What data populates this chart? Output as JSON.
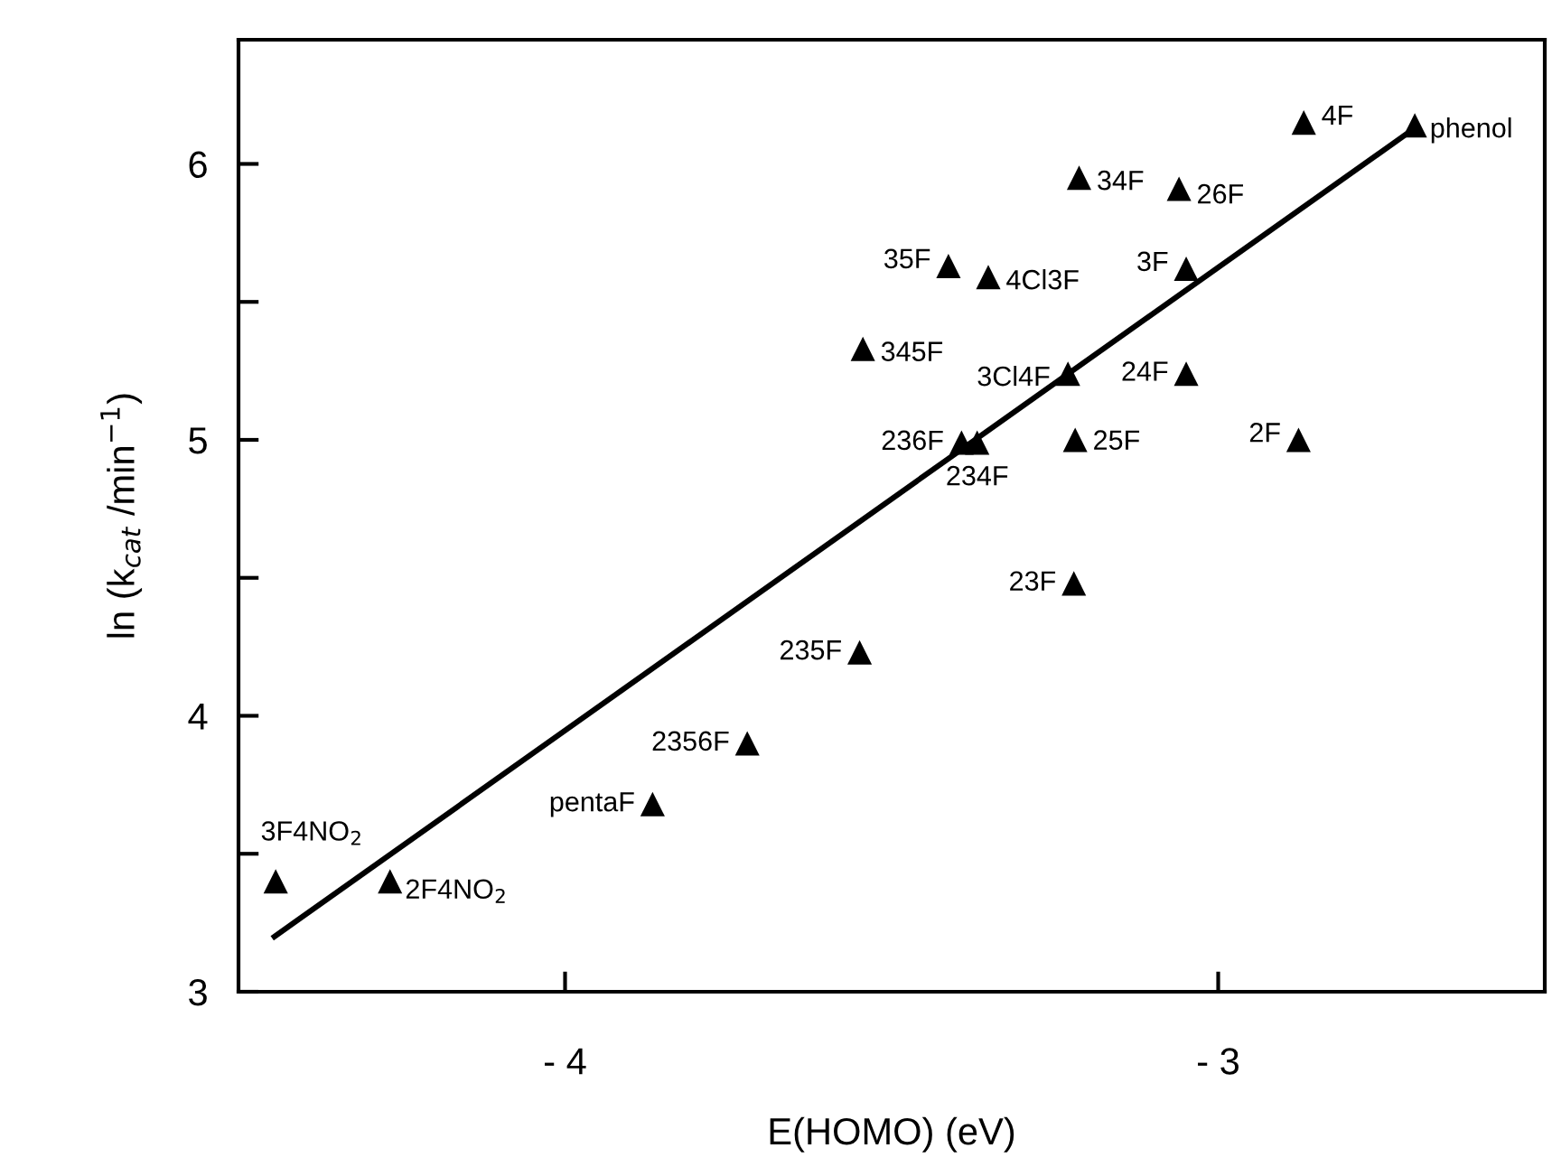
{
  "chart_data": {
    "type": "scatter",
    "xlabel": "E(HOMO) (eV)",
    "ylabel": "ln (k$_{cat}$ /min$^{−1}$)",
    "xlim": [
      -4.5,
      -2.5
    ],
    "ylim": [
      3,
      6.45
    ],
    "xticks": [
      {
        "value": -4,
        "label": "- 4"
      },
      {
        "value": -3,
        "label": "- 3"
      }
    ],
    "yticks": [
      3,
      {
        "value": 3.5,
        "label": null
      },
      4,
      {
        "value": 4.5,
        "label": null
      },
      5,
      {
        "value": 5.5,
        "label": null
      },
      6
    ],
    "grid": false,
    "marker": "triangle",
    "series": [
      {
        "color": "#000000",
        "x": [
          -4.443,
          -4.268,
          -3.866,
          -3.721,
          -3.549,
          -2.869,
          -2.699,
          -3.213,
          -3.06,
          -3.413,
          -3.352,
          -3.049,
          -3.544,
          -3.23,
          -3.049,
          -3.393,
          -3.369,
          -3.219,
          -2.877,
          -3.221
        ],
        "values": [
          3.4,
          3.4,
          3.68,
          3.9,
          4.23,
          6.15,
          6.14,
          5.95,
          5.91,
          5.63,
          5.59,
          5.62,
          5.33,
          5.24,
          5.24,
          4.99,
          4.99,
          5.0,
          5.0,
          4.48
        ]
      },
      {
        "type": "line",
        "color": "#000000",
        "marker": "none",
        "line_style": "solid",
        "x": [
          -4.445,
          -2.699
        ],
        "values": [
          3.2,
          6.13
        ]
      }
    ],
    "annotations": [
      {
        "text": "3F4NO$_{2}$",
        "x": -4.443,
        "y": 3.4
      },
      {
        "text": "2F4NO$_{2}$",
        "x": -4.268,
        "y": 3.4
      },
      {
        "text": "pentaF",
        "x": -3.866,
        "y": 3.68
      },
      {
        "text": "2356F",
        "x": -3.721,
        "y": 3.9
      },
      {
        "text": "235F",
        "x": -3.549,
        "y": 4.23
      },
      {
        "text": "4F",
        "x": -2.869,
        "y": 6.15
      },
      {
        "text": "phenol",
        "x": -2.699,
        "y": 6.14
      },
      {
        "text": "34F",
        "x": -3.213,
        "y": 5.95
      },
      {
        "text": "26F",
        "x": -3.06,
        "y": 5.91
      },
      {
        "text": "35F",
        "x": -3.413,
        "y": 5.63
      },
      {
        "text": "4Cl3F",
        "x": -3.352,
        "y": 5.59
      },
      {
        "text": "3F",
        "x": -3.049,
        "y": 5.62
      },
      {
        "text": "345F",
        "x": -3.544,
        "y": 5.33
      },
      {
        "text": "3Cl4F",
        "x": -3.23,
        "y": 5.24
      },
      {
        "text": "24F",
        "x": -3.049,
        "y": 5.24
      },
      {
        "text": "236F",
        "x": -3.393,
        "y": 4.99
      },
      {
        "text": "234F",
        "x": -3.369,
        "y": 4.99
      },
      {
        "text": "25F",
        "x": -3.219,
        "y": 5.0
      },
      {
        "text": "2F",
        "x": -2.877,
        "y": 5.0
      },
      {
        "text": "23F",
        "x": -3.221,
        "y": 4.48
      }
    ]
  }
}
